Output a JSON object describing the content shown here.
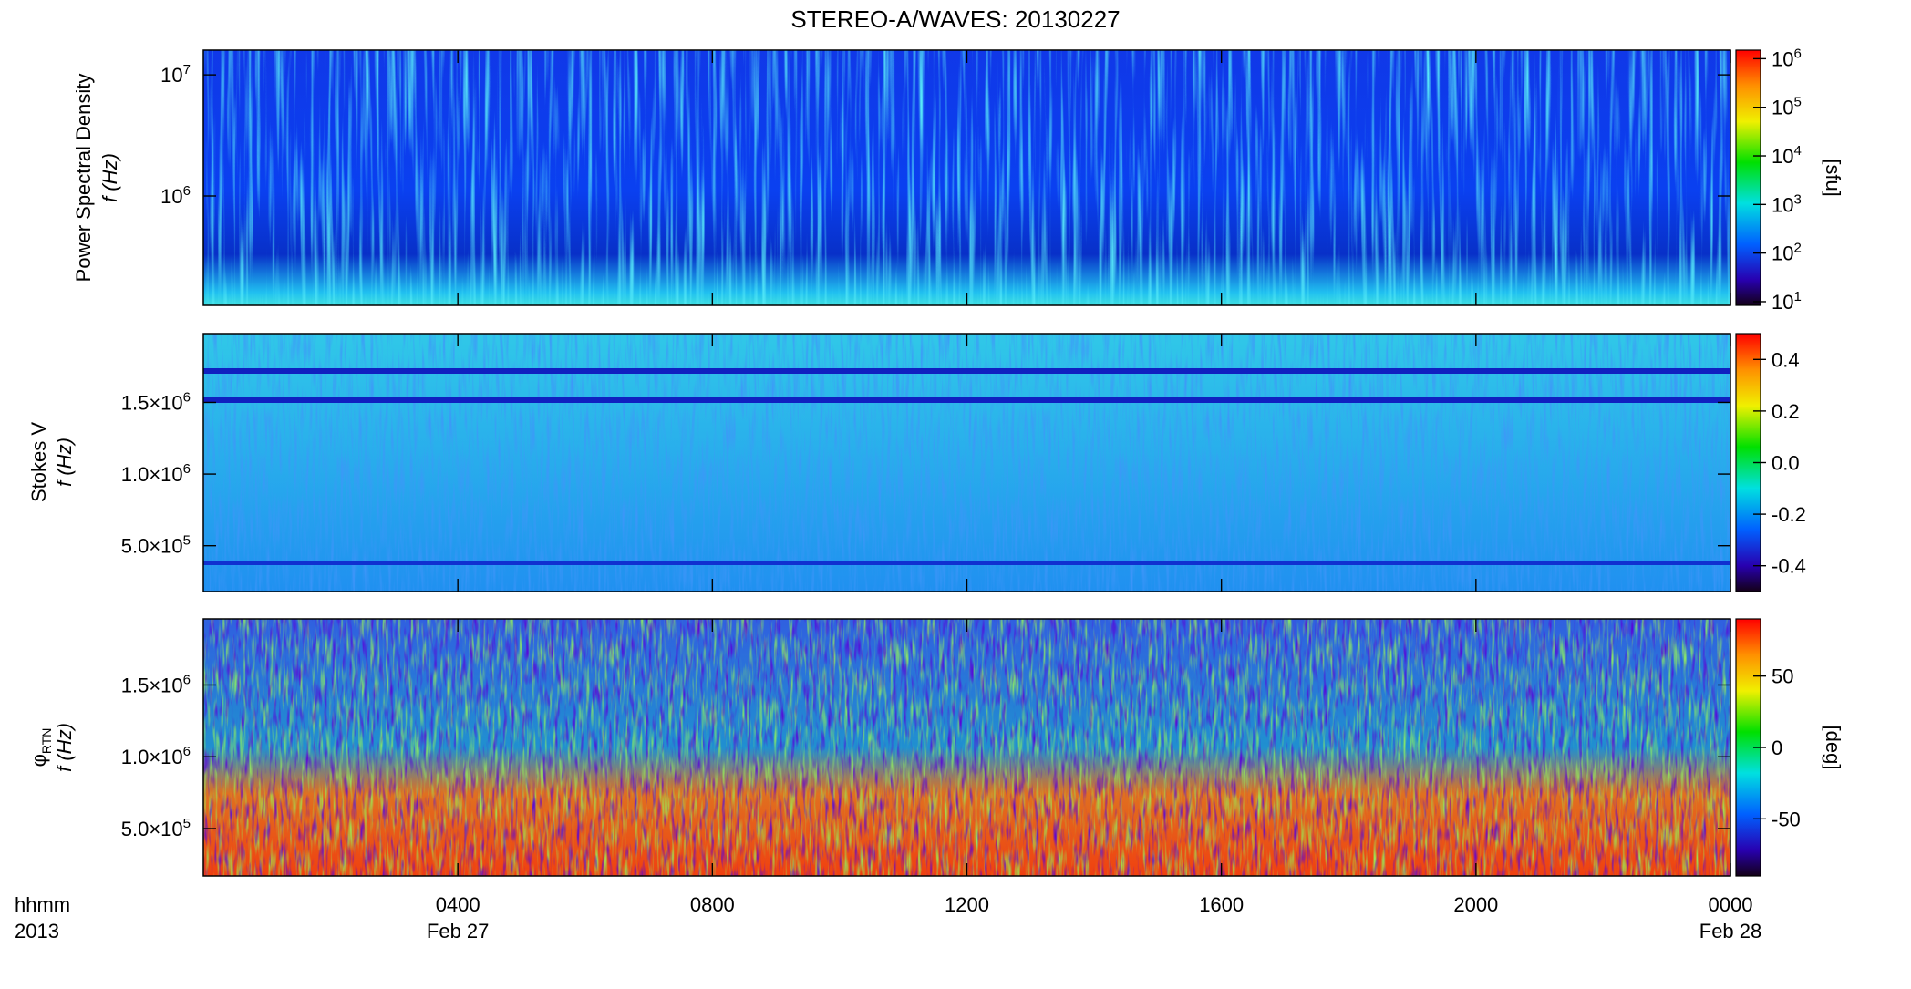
{
  "chart_data": [
    {
      "type": "heatmap",
      "title": "STEREO-A/WAVES: 20130227",
      "ylabel": "Power Spectral Density",
      "yunit": "f (Hz)",
      "ylog": true,
      "ylim": [
        125000,
        16000000
      ],
      "yticks": [
        {
          "value": 1000000,
          "label": "10",
          "exponent": "6"
        },
        {
          "value": 10000000,
          "label": "10",
          "exponent": "7"
        }
      ],
      "colorbar": {
        "log": true,
        "lim": [
          8.4,
          1500000
        ],
        "label": "[sfu]",
        "ticks": [
          {
            "value": 10,
            "label": "10",
            "exponent": "1"
          },
          {
            "value": 100,
            "label": "10",
            "exponent": "2"
          },
          {
            "value": 1000,
            "label": "10",
            "exponent": "3"
          },
          {
            "value": 10000,
            "label": "10",
            "exponent": "4"
          },
          {
            "value": 100000,
            "label": "10",
            "exponent": "5"
          },
          {
            "value": 1000000,
            "label": "10",
            "exponent": "6"
          }
        ]
      }
    },
    {
      "type": "heatmap",
      "ylabel": "Stokes V",
      "yunit": "f (Hz)",
      "ylog": false,
      "ylim": [
        180000,
        1980000
      ],
      "yticks": [
        {
          "value": 500000,
          "label": "5.0×10",
          "exponent": "5"
        },
        {
          "value": 1000000,
          "label": "1.0×10",
          "exponent": "6"
        },
        {
          "value": 1500000,
          "label": "1.5×10",
          "exponent": "6"
        }
      ],
      "colorbar": {
        "log": false,
        "lim": [
          -0.5,
          0.5
        ],
        "label": "",
        "ticks": [
          -0.4,
          -0.2,
          {
            "value": 0,
            "label": "0.0"
          },
          0.2,
          0.4
        ]
      }
    },
    {
      "type": "heatmap",
      "ylabel": "φ",
      "ylabel_sub": "RTN",
      "yunit": "f (Hz)",
      "ylog": false,
      "ylim": [
        170000,
        1960000
      ],
      "yticks": [
        {
          "value": 500000,
          "label": "5.0×10",
          "exponent": "5"
        },
        {
          "value": 1000000,
          "label": "1.0×10",
          "exponent": "6"
        },
        {
          "value": 1500000,
          "label": "1.5×10",
          "exponent": "6"
        }
      ],
      "colorbar": {
        "log": false,
        "lim": [
          -90,
          90
        ],
        "label": "[deg]",
        "ticks": [
          -50,
          0,
          50
        ]
      },
      "xlabel": [
        "hhmm",
        "2013"
      ],
      "xlim": [
        0,
        24
      ],
      "xticks": [
        {
          "value": 4,
          "label": "0400"
        },
        {
          "value": 8,
          "label": "0800"
        },
        {
          "value": 12,
          "label": "1200"
        },
        {
          "value": 16,
          "label": "1600"
        },
        {
          "value": 20,
          "label": "2000"
        },
        {
          "value": 24,
          "label": "0000"
        }
      ],
      "date_labels": [
        {
          "at": 4,
          "label": "Feb 27"
        },
        {
          "at": 24,
          "label": "Feb 28"
        }
      ]
    }
  ]
}
